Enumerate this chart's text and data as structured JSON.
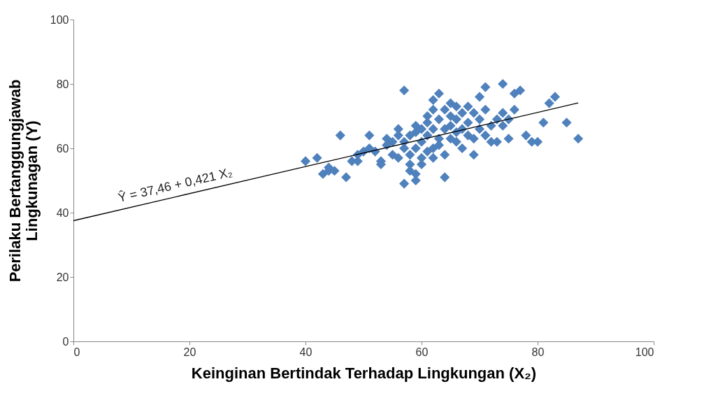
{
  "chart_data": {
    "type": "scatter",
    "xlabel": "Keinginan Bertindak Terhadap Lingkungan (X₂)",
    "ylabel": "Perilaku Bertanggungjawab\nLingkunagan (Y)",
    "xlim": [
      0,
      100
    ],
    "ylim": [
      0,
      100
    ],
    "xticks": [
      0,
      20,
      40,
      60,
      80,
      100
    ],
    "yticks": [
      0,
      20,
      40,
      60,
      80,
      100
    ],
    "grid": false,
    "marker": "diamond",
    "series": [
      {
        "color": "#4f81bd",
        "x": [
          40,
          42,
          43,
          44,
          44,
          45,
          46,
          47,
          48,
          49,
          49,
          50,
          51,
          51,
          52,
          53,
          53,
          54,
          54,
          55,
          55,
          56,
          56,
          56,
          57,
          57,
          57,
          57,
          58,
          58,
          58,
          58,
          59,
          59,
          59,
          59,
          59,
          60,
          60,
          60,
          60,
          61,
          61,
          61,
          61,
          62,
          62,
          62,
          62,
          62,
          63,
          63,
          63,
          63,
          64,
          64,
          64,
          64,
          65,
          65,
          65,
          65,
          66,
          66,
          66,
          66,
          67,
          67,
          67,
          68,
          68,
          68,
          69,
          69,
          69,
          70,
          70,
          70,
          71,
          71,
          71,
          72,
          72,
          73,
          73,
          74,
          74,
          74,
          75,
          75,
          76,
          76,
          77,
          78,
          79,
          80,
          81,
          82,
          83,
          85,
          87
        ],
        "values": [
          56,
          57,
          52,
          54,
          53,
          53,
          64,
          51,
          56,
          56,
          58,
          59,
          64,
          60,
          59,
          56,
          55,
          61,
          63,
          58,
          62,
          57,
          66,
          64,
          78,
          49,
          60,
          62,
          55,
          53,
          58,
          64,
          50,
          52,
          60,
          65,
          67,
          57,
          62,
          66,
          55,
          70,
          64,
          59,
          68,
          72,
          75,
          66,
          60,
          57,
          77,
          69,
          63,
          61,
          51,
          66,
          72,
          58,
          70,
          74,
          63,
          67,
          73,
          69,
          62,
          65,
          60,
          71,
          66,
          73,
          64,
          68,
          58,
          63,
          71,
          76,
          66,
          69,
          79,
          72,
          64,
          67,
          62,
          62,
          69,
          80,
          71,
          67,
          63,
          69,
          77,
          72,
          78,
          64,
          62,
          62,
          68,
          74,
          76,
          68,
          63
        ]
      },
      {
        "type": "line",
        "color": "#000000",
        "marker": "none",
        "line_style": "solid",
        "x": [
          0,
          87
        ],
        "values": [
          37.5,
          74.1
        ]
      }
    ],
    "annotations": [
      {
        "text": "Ŷ = 37,46 + 0,421 X₂",
        "x": 18,
        "y": 45.0
      }
    ]
  }
}
